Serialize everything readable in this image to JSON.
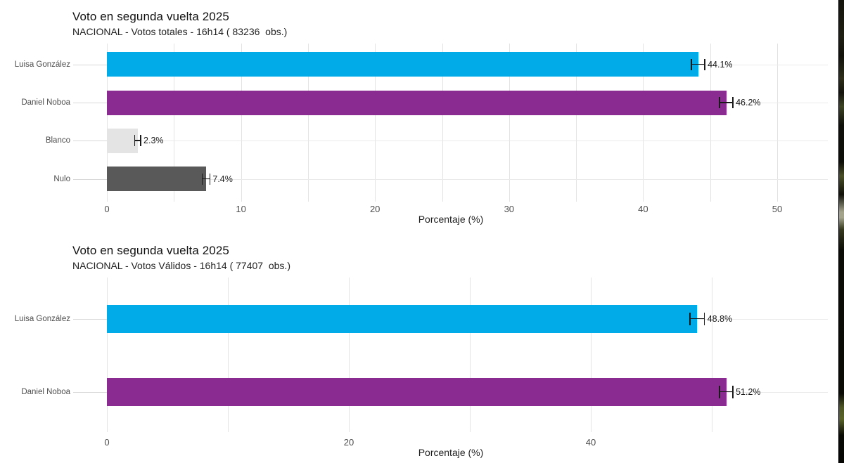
{
  "page": {
    "background": "#ffffff"
  },
  "chart_data": [
    {
      "type": "bar",
      "orientation": "horizontal",
      "title": "Voto en segunda vuelta 2025",
      "subtitle": "NACIONAL - Votos totales - 16h14 ( 83236  obs.)",
      "xlabel": "Porcentaje (%)",
      "ylabel": "",
      "xlim": [
        0,
        53.8
      ],
      "x_ticks": [
        0,
        10,
        20,
        30,
        40,
        50
      ],
      "gridline_step": 5,
      "grid": true,
      "legend": "none",
      "categories": [
        "Luisa González",
        "Daniel Noboa",
        "Blanco",
        "Nulo"
      ],
      "bars": [
        {
          "category": "Luisa González",
          "value": 44.1,
          "label": "44.1%",
          "error_margin": 0.5,
          "color": "#00ABE8"
        },
        {
          "category": "Daniel Noboa",
          "value": 46.2,
          "label": "46.2%",
          "error_margin": 0.5,
          "color": "#8A2B92"
        },
        {
          "category": "Blanco",
          "value": 2.3,
          "label": "2.3%",
          "error_margin": 0.22,
          "color": "#E4E4E4"
        },
        {
          "category": "Nulo",
          "value": 7.4,
          "label": "7.4%",
          "error_margin": 0.28,
          "color": "#595959"
        }
      ]
    },
    {
      "type": "bar",
      "orientation": "horizontal",
      "title": "Voto en segunda vuelta 2025",
      "subtitle": "NACIONAL - Votos Válidos - 16h14 ( 77407  obs.)",
      "xlabel": "Porcentaje (%)",
      "ylabel": "",
      "xlim": [
        0,
        59.6
      ],
      "x_ticks": [
        0,
        20,
        40
      ],
      "gridline_step": 10,
      "grid": true,
      "legend": "none",
      "categories": [
        "Luisa González",
        "Daniel Noboa"
      ],
      "bars": [
        {
          "category": "Luisa González",
          "value": 48.8,
          "label": "48.8%",
          "error_margin": 0.6,
          "color": "#00ABE8"
        },
        {
          "category": "Daniel Noboa",
          "value": 51.2,
          "label": "51.2%",
          "error_margin": 0.55,
          "color": "#8A2B92"
        }
      ]
    }
  ]
}
